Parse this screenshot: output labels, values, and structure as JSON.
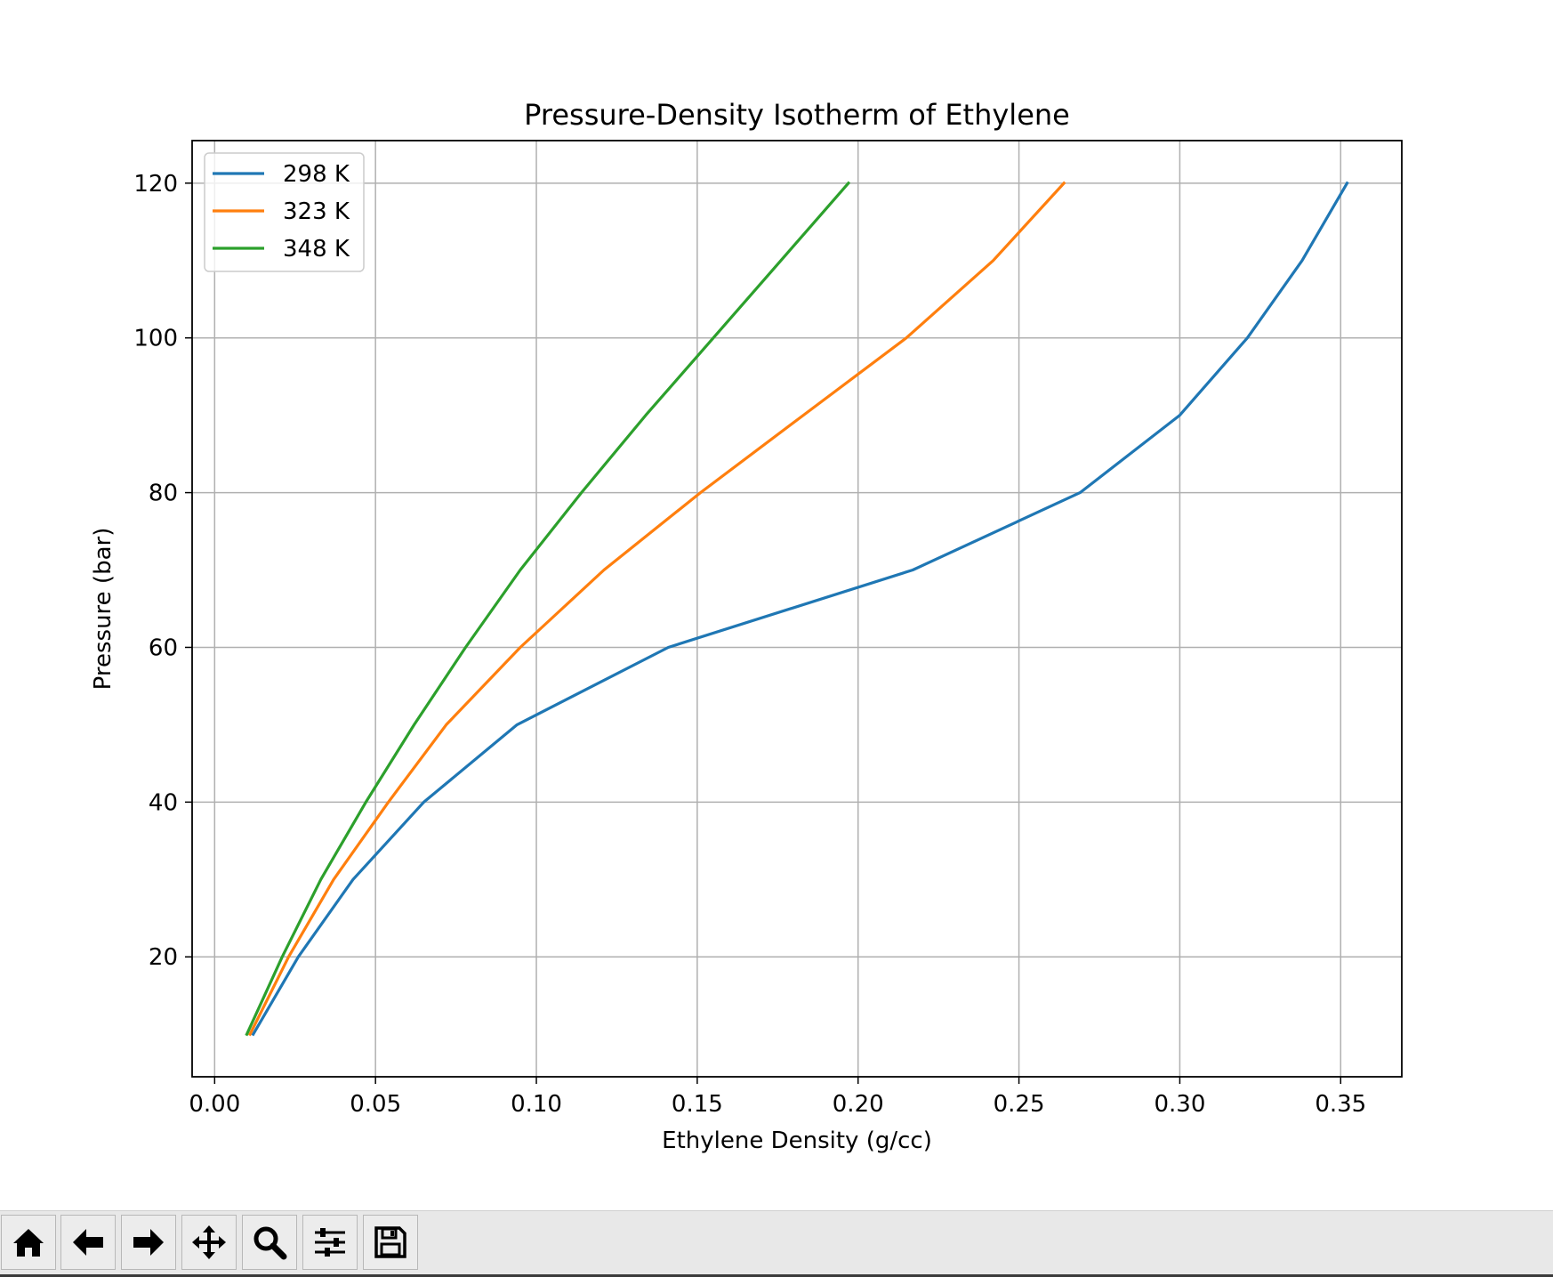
{
  "chart_data": {
    "type": "line",
    "title": "Pressure-Density Isotherm of Ethylene",
    "xlabel": "Ethylene Density (g/cc)",
    "ylabel": "Pressure (bar)",
    "xlim": [
      -0.007,
      0.369
    ],
    "ylim": [
      4.5,
      125.5
    ],
    "xticks": [
      0.0,
      0.05,
      0.1,
      0.15,
      0.2,
      0.25,
      0.3,
      0.35
    ],
    "xtick_labels": [
      "0.00",
      "0.05",
      "0.10",
      "0.15",
      "0.20",
      "0.25",
      "0.30",
      "0.35"
    ],
    "yticks": [
      20,
      40,
      60,
      80,
      100,
      120
    ],
    "ytick_labels": [
      "20",
      "40",
      "60",
      "80",
      "100",
      "120"
    ],
    "grid": true,
    "legend_position": "upper-left",
    "series": [
      {
        "name": "298 K",
        "color": "#1f77b4",
        "points": [
          [
            0.012,
            10
          ],
          [
            0.026,
            20
          ],
          [
            0.043,
            30
          ],
          [
            0.065,
            40
          ],
          [
            0.094,
            50
          ],
          [
            0.141,
            60
          ],
          [
            0.217,
            70
          ],
          [
            0.269,
            80
          ],
          [
            0.3,
            90
          ],
          [
            0.321,
            100
          ],
          [
            0.338,
            110
          ],
          [
            0.352,
            120
          ]
        ]
      },
      {
        "name": "323 K",
        "color": "#ff7f0e",
        "points": [
          [
            0.011,
            10
          ],
          [
            0.023,
            20
          ],
          [
            0.037,
            30
          ],
          [
            0.054,
            40
          ],
          [
            0.072,
            50
          ],
          [
            0.095,
            60
          ],
          [
            0.121,
            70
          ],
          [
            0.151,
            80
          ],
          [
            0.183,
            90
          ],
          [
            0.215,
            100
          ],
          [
            0.242,
            110
          ],
          [
            0.264,
            120
          ]
        ]
      },
      {
        "name": "348 K",
        "color": "#2ca02c",
        "points": [
          [
            0.01,
            10
          ],
          [
            0.021,
            20
          ],
          [
            0.033,
            30
          ],
          [
            0.047,
            40
          ],
          [
            0.062,
            50
          ],
          [
            0.078,
            60
          ],
          [
            0.095,
            70
          ],
          [
            0.114,
            80
          ],
          [
            0.134,
            90
          ],
          [
            0.155,
            100
          ],
          [
            0.176,
            110
          ],
          [
            0.197,
            120
          ]
        ]
      }
    ]
  },
  "toolbar": {
    "buttons": [
      {
        "name": "home",
        "icon": "home-icon"
      },
      {
        "name": "back",
        "icon": "arrow-left-icon"
      },
      {
        "name": "forward",
        "icon": "arrow-right-icon"
      },
      {
        "name": "pan",
        "icon": "move-icon"
      },
      {
        "name": "zoom",
        "icon": "magnifier-icon"
      },
      {
        "name": "configure-subplots",
        "icon": "sliders-icon"
      },
      {
        "name": "save",
        "icon": "floppy-disk-icon"
      }
    ]
  }
}
